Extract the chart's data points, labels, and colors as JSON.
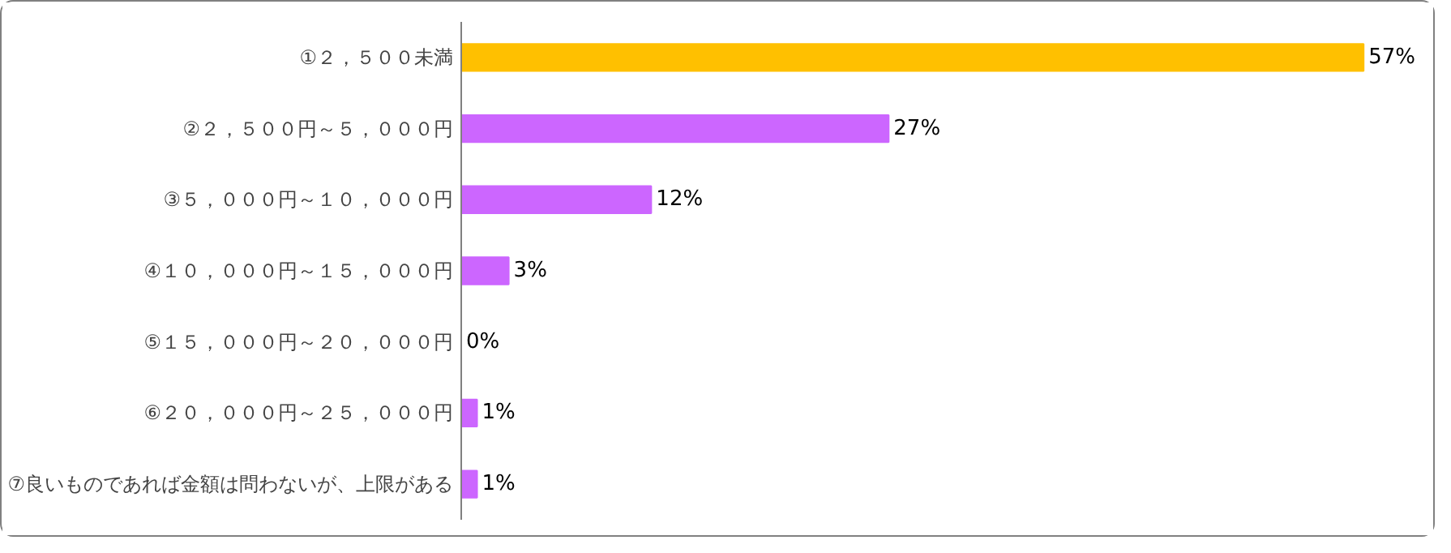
{
  "chart_data": {
    "type": "bar",
    "orientation": "horizontal",
    "categories": [
      "①２，５００未満",
      "②２，５００円～５，０００円",
      "③５，０００円～１０，０００円",
      "④１０，０００円～１５，０００円",
      "⑤１５，０００円～２０，０００円",
      "⑥２０，０００円～２５，０００円",
      "⑦良いものであれば金額は問わないが、上限がある"
    ],
    "values": [
      57,
      27,
      12,
      3,
      0,
      1,
      1
    ],
    "colors": [
      "#ffc000",
      "#cc66ff",
      "#cc66ff",
      "#cc66ff",
      "#cc66ff",
      "#cc66ff",
      "#cc66ff"
    ],
    "value_labels": [
      "57%",
      "27%",
      "12%",
      "3%",
      "0%",
      "1%",
      "1%"
    ],
    "grid": false
  }
}
